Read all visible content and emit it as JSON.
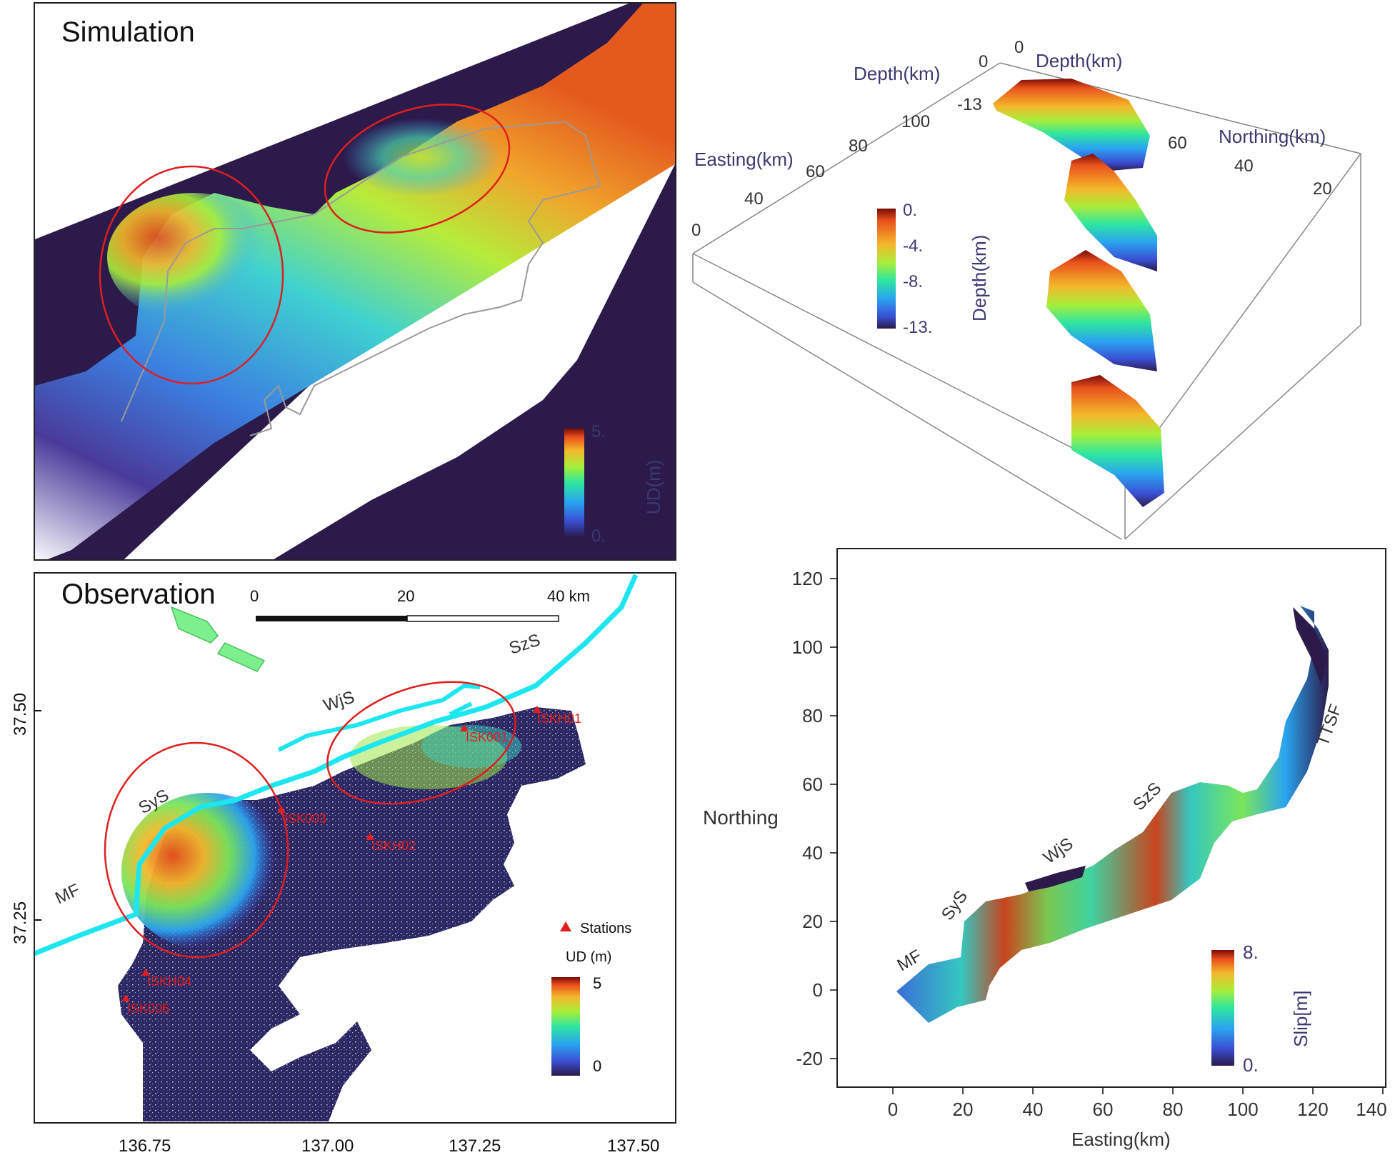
{
  "colors": {
    "background_dark": "#2b1a4a",
    "circle": "#e01e1e",
    "fault_line": "#1ee6f0",
    "station": "#e01e1e",
    "arrow": "#7cf08c"
  },
  "simulation": {
    "title": "Simulation",
    "colorbar": {
      "label": "UD(m)",
      "max": "5.",
      "min": "0."
    }
  },
  "depth_view": {
    "axis_labels": [
      "Depth(km)",
      "Depth(km)",
      "Easting(km)",
      "Northing(km)"
    ],
    "ticks_depth_left": [
      "0",
      "-13"
    ],
    "ticks_depth_right": [
      "0"
    ],
    "ticks_easting": [
      "100",
      "80",
      "60",
      "40",
      "0"
    ],
    "ticks_northing": [
      "60",
      "40",
      "20"
    ],
    "colorbar": {
      "label": "Depth(km)",
      "ticks": [
        "0.",
        "-4.",
        "-8.",
        "-13."
      ]
    }
  },
  "observation": {
    "title": "Observation",
    "scale": {
      "ticks": [
        "0",
        "20",
        "40 km"
      ]
    },
    "y_ticks": [
      "37.50",
      "37.25"
    ],
    "x_ticks": [
      "136.75",
      "137.00",
      "137.25",
      "137.50"
    ],
    "faults": [
      "SzS",
      "WjS",
      "SyS",
      "MF"
    ],
    "stations": [
      "ISKH01",
      "ISK001",
      "ISK003",
      "ISKH02",
      "ISKH04",
      "ISK006"
    ],
    "legend": {
      "stations_label": "Stations",
      "colorbar_label": "UD (m)",
      "max": "5",
      "min": "0"
    }
  },
  "slip_map": {
    "xlabel": "Easting(km)",
    "ylabel": "Northing",
    "x_ticks": [
      "0",
      "20",
      "40",
      "60",
      "80",
      "100",
      "120",
      "140"
    ],
    "y_ticks": [
      "120",
      "100",
      "80",
      "60",
      "40",
      "20",
      "0",
      "-20"
    ],
    "faults": [
      "MF",
      "SyS",
      "WjS",
      "SzS",
      "TTSF"
    ],
    "colorbar": {
      "label": "Slip[m]",
      "max": "8.",
      "min": "0."
    }
  }
}
